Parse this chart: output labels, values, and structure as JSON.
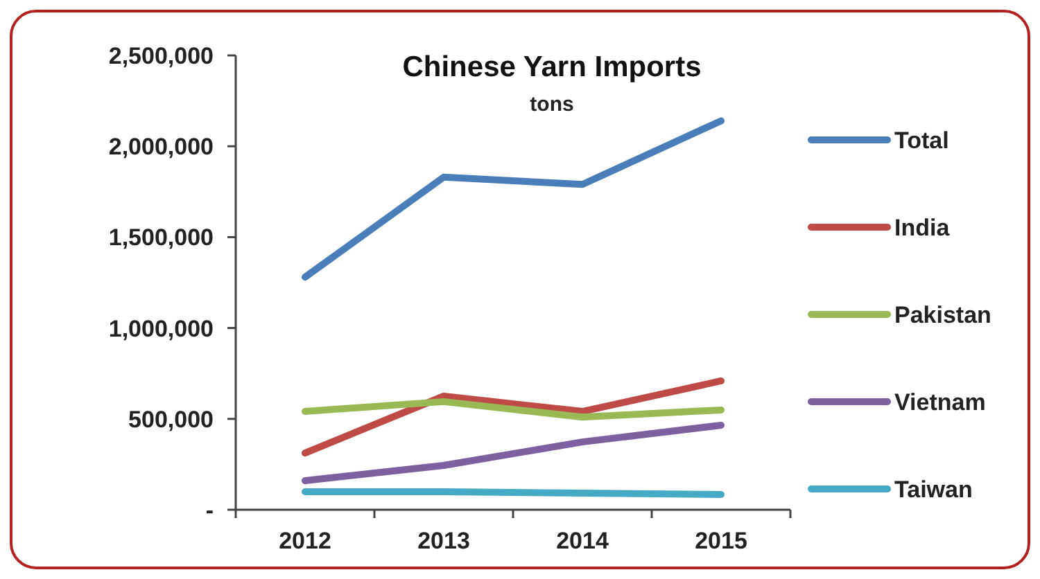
{
  "chart_data": {
    "type": "line",
    "title": "Chinese Yarn Imports",
    "subtitle": "tons",
    "categories": [
      "2012",
      "2013",
      "2014",
      "2015"
    ],
    "series": [
      {
        "name": "Total",
        "color": "#4a7ebb",
        "values": [
          1280000,
          1830000,
          1790000,
          2140000
        ]
      },
      {
        "name": "India",
        "color": "#be4b48",
        "values": [
          312000,
          625000,
          541000,
          709000
        ]
      },
      {
        "name": "Pakistan",
        "color": "#98b954",
        "values": [
          541000,
          595000,
          510000,
          549000
        ]
      },
      {
        "name": "Vietnam",
        "color": "#7d60a0",
        "values": [
          160000,
          244000,
          373000,
          465000
        ]
      },
      {
        "name": "Taiwan",
        "color": "#46aac5",
        "values": [
          99000,
          99000,
          91000,
          84000
        ]
      }
    ],
    "ylim": [
      0,
      2500000
    ],
    "yticks": [
      {
        "value": 0,
        "label": "-"
      },
      {
        "value": 500000,
        "label": "500,000"
      },
      {
        "value": 1000000,
        "label": "1,000,000"
      },
      {
        "value": 1500000,
        "label": "1,500,000"
      },
      {
        "value": 2000000,
        "label": "2,000,000"
      },
      {
        "value": 2500000,
        "label": "2,500,000"
      }
    ],
    "grid": false,
    "legend": "right",
    "marker": "none",
    "line_style": "solid"
  }
}
